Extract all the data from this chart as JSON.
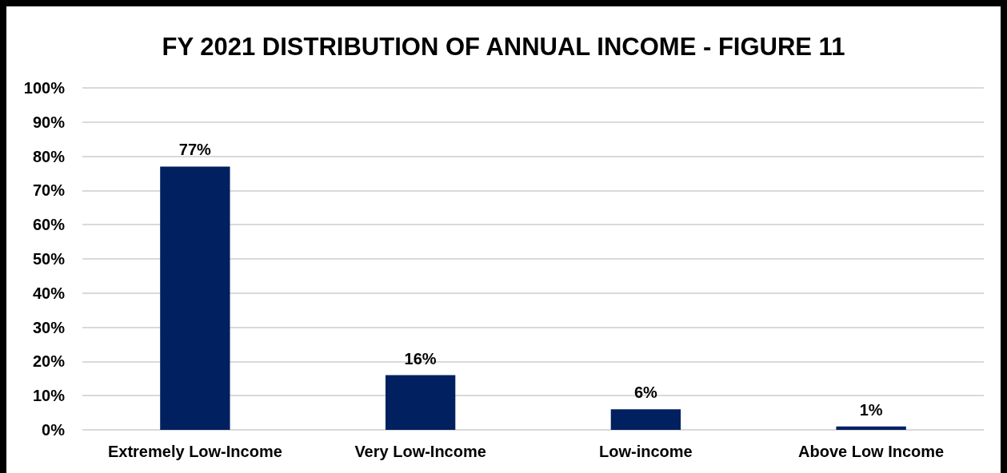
{
  "chart_data": {
    "type": "bar",
    "title": "FY 2021 DISTRIBUTION OF ANNUAL INCOME - FIGURE 11",
    "categories": [
      "Extremely Low-Income",
      "Very Low-Income",
      "Low-income",
      "Above Low Income"
    ],
    "values": [
      77,
      16,
      6,
      1
    ],
    "value_labels": [
      "77%",
      "16%",
      "6%",
      "1%"
    ],
    "color": "#002060",
    "ylim": [
      0,
      100
    ],
    "yticks": [
      {
        "value": 0,
        "label": "0%"
      },
      {
        "value": 10,
        "label": "10%"
      },
      {
        "value": 20,
        "label": "20%"
      },
      {
        "value": 30,
        "label": "30%"
      },
      {
        "value": 40,
        "label": "40%"
      },
      {
        "value": 50,
        "label": "50%"
      },
      {
        "value": 60,
        "label": "60%"
      },
      {
        "value": 70,
        "label": "70%"
      },
      {
        "value": 80,
        "label": "80%"
      },
      {
        "value": 90,
        "label": "90%"
      },
      {
        "value": 100,
        "label": "100%"
      }
    ],
    "grid": "y"
  }
}
